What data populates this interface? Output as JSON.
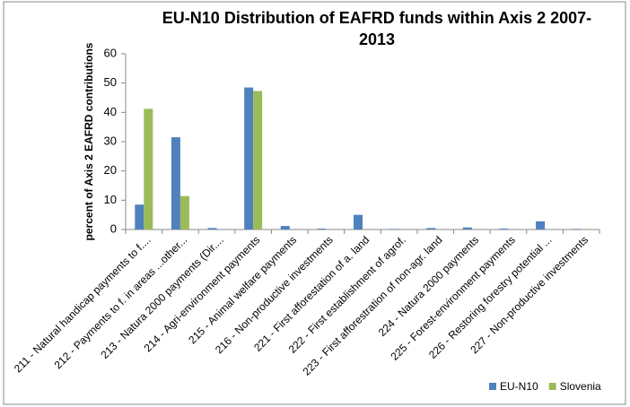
{
  "chart_data": {
    "type": "bar",
    "title": "EU-N10 Distribution of EAFRD funds within Axis 2 2007-2013",
    "y_label": "percent of Axis 2 EAFRD contributions",
    "categories": [
      "211 - Natural handicap payments to f....",
      "212 - Payments to f. in areas ...other...",
      "213 - Natura 2000 payments (Dir....",
      "214 - Agri-environment payments",
      "215 - Animal welfare payments",
      "216 - Non-productive investments",
      "221 - First afforestation of a. land",
      "222 - First establishment of agrof.",
      "223 - First afforestration of non-agr. land",
      "224 - Natura 2000 payments",
      "225 - Forest-environment payments",
      "226 - Restoring forestry potential ...",
      "227 - Non-productive investments"
    ],
    "series": [
      {
        "name": "EU-N10",
        "color": "#4f81bd",
        "values": [
          8.5,
          31.5,
          0.5,
          48.5,
          1.2,
          0.3,
          5,
          0.2,
          0.5,
          0.7,
          0.3,
          2.8,
          0.2
        ]
      },
      {
        "name": "Slovenia",
        "color": "#9bbb59",
        "values": [
          41.2,
          11.4,
          0,
          47.3,
          0,
          0,
          0,
          0,
          0,
          0,
          0,
          0,
          0
        ]
      }
    ],
    "ylim": [
      0,
      60
    ],
    "yticks": [
      0,
      10,
      20,
      30,
      40,
      50,
      60
    ],
    "grid": false,
    "legend": "bottom-right"
  }
}
